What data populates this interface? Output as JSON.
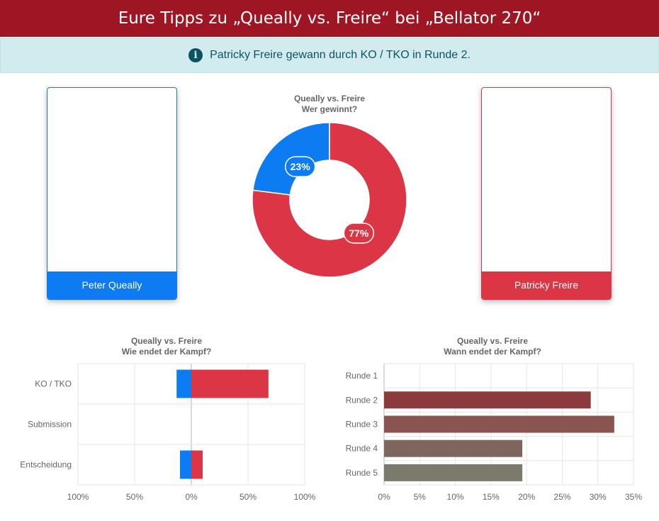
{
  "header": {
    "title": "Eure Tipps zu „Queally vs. Freire“ bei „Bellator 270“"
  },
  "alert": {
    "icon": "info-circle-icon",
    "text": "Patricky Freire gewann durch KO / TKO in Runde 2."
  },
  "fighters": [
    {
      "name": "Peter Queally",
      "color": "#0d7cf2"
    },
    {
      "name": "Patricky Freire",
      "color": "#dc3545"
    }
  ],
  "chart_data": [
    {
      "type": "pie",
      "variant": "donut",
      "title": "Queally vs. Freire",
      "subtitle": "Wer gewinnt?",
      "slices": [
        {
          "label": "Peter Queally",
          "value": 23,
          "display": "23%",
          "color": "#0d7cf2"
        },
        {
          "label": "Patricky Freire",
          "value": 77,
          "display": "77%",
          "color": "#dc3545"
        }
      ]
    },
    {
      "type": "bar",
      "orientation": "horizontal",
      "stacked": "diverging",
      "title": "Queally vs. Freire",
      "subtitle": "Wie endet der Kampf?",
      "categories": [
        "KO / TKO",
        "Submission",
        "Entscheidung"
      ],
      "series": [
        {
          "name": "Peter Queally",
          "color": "#0d7cf2",
          "values": [
            -13,
            0,
            -10
          ]
        },
        {
          "name": "Patricky Freire",
          "color": "#dc3545",
          "values": [
            68,
            0,
            10
          ]
        }
      ],
      "xlim": [
        -100,
        100
      ],
      "xticks": [
        "100%",
        "50%",
        "0%",
        "50%",
        "100%"
      ],
      "grid": true,
      "legend": "none"
    },
    {
      "type": "bar",
      "orientation": "horizontal",
      "title": "Queally vs. Freire",
      "subtitle": "Wann endet der Kampf?",
      "categories": [
        "Runde 1",
        "Runde 2",
        "Runde 3",
        "Runde 4",
        "Runde 5"
      ],
      "values": [
        0,
        29,
        32.3,
        19.4,
        19.4
      ],
      "colors": [
        "#8e2a30",
        "#8c3a3e",
        "#8a5450",
        "#7e665e",
        "#7c7a6c"
      ],
      "xlim": [
        0,
        35
      ],
      "xticks": [
        "0%",
        "5%",
        "10%",
        "15%",
        "20%",
        "25%",
        "30%",
        "35%"
      ],
      "grid": true,
      "legend": "none"
    }
  ]
}
